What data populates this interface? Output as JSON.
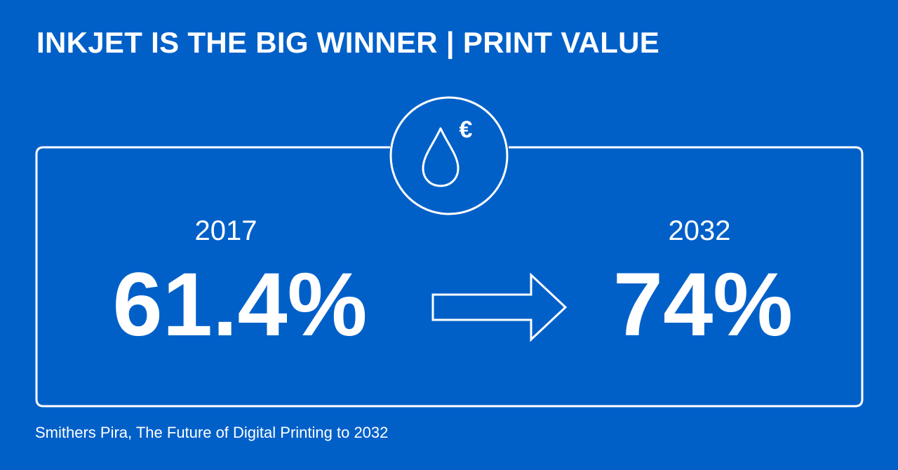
{
  "title": "INKJET IS THE BIG WINNER | PRINT VALUE",
  "icon": {
    "name": "ink-drop-euro-icon",
    "symbol": "€"
  },
  "comparison": {
    "from": {
      "year": "2017",
      "value": "61.4%"
    },
    "to": {
      "year": "2032",
      "value": "74%"
    }
  },
  "source": "Smithers Pira, The Future of Digital Printing to 2032",
  "colors": {
    "background": "#0060C8",
    "foreground": "#FFFFFF"
  }
}
